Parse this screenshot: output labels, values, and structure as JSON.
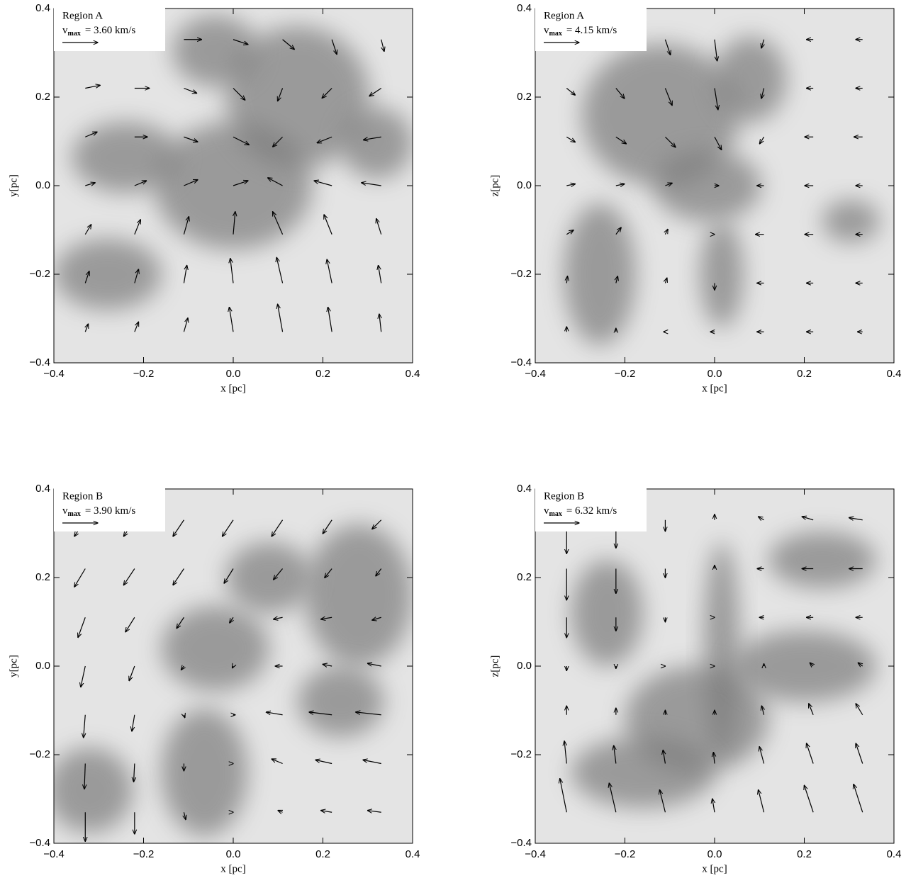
{
  "chart_data": [
    {
      "type": "quiver",
      "region_label": "Region A",
      "vmax_symbol": "v",
      "vmax_subscript": "max",
      "reference_arrow": {
        "value": 3.6,
        "label": "= 3.60 km/s"
      },
      "xlabel": "x [pc]",
      "ylabel": "y[pc]",
      "xlim": [
        -0.4,
        0.4
      ],
      "ylim": [
        -0.4,
        0.4
      ],
      "xticks": [
        {
          "value": -0.4,
          "label": "−0.4"
        },
        {
          "value": -0.2,
          "label": "−0.2"
        },
        {
          "value": 0,
          "label": "0.0"
        },
        0.2,
        0.4
      ],
      "yticks": [
        {
          "value": -0.4,
          "label": "−0.4"
        },
        {
          "value": -0.2,
          "label": "−0.2"
        },
        {
          "value": 0,
          "label": "0.0"
        },
        0.2,
        0.4
      ],
      "grid_x": [
        -0.33,
        -0.22,
        -0.11,
        0,
        0.11,
        0.22,
        0.33
      ],
      "grid_y": [
        0.33,
        0.22,
        0.11,
        0,
        -0.11,
        -0.22,
        -0.33
      ],
      "u": [
        [
          2.0,
          2.0,
          1.8,
          1.5,
          1.2,
          0.5,
          0.3
        ],
        [
          1.5,
          1.5,
          1.3,
          1.2,
          -0.5,
          -1.0,
          -1.2
        ],
        [
          1.2,
          1.3,
          1.4,
          1.6,
          -1.0,
          -1.5,
          -1.8
        ],
        [
          1.0,
          1.2,
          1.4,
          1.5,
          -1.5,
          -1.8,
          -2.0
        ],
        [
          0.6,
          0.6,
          0.5,
          0.2,
          -1.0,
          -0.8,
          -0.5
        ],
        [
          0.4,
          0.4,
          0.3,
          -0.3,
          -0.6,
          -0.5,
          -0.3
        ],
        [
          0.3,
          0.4,
          0.4,
          -0.4,
          -0.5,
          -0.4,
          -0.2
        ]
      ],
      "v": [
        [
          0,
          0,
          0,
          -0.5,
          -1.0,
          -1.5,
          -1.2
        ],
        [
          0.3,
          0,
          -0.5,
          -1.2,
          -1.3,
          -1.0,
          -0.8
        ],
        [
          0.5,
          0,
          -0.5,
          -0.8,
          -1.0,
          -0.6,
          -0.3
        ],
        [
          0.3,
          0.5,
          0.6,
          0.5,
          0.8,
          0.5,
          0.3
        ],
        [
          1.0,
          1.5,
          1.8,
          2.3,
          2.3,
          2.0,
          1.6
        ],
        [
          1.2,
          1.4,
          1.8,
          2.5,
          2.6,
          2.4,
          1.8
        ],
        [
          0.8,
          1.0,
          1.4,
          2.5,
          2.8,
          2.5,
          1.8
        ]
      ]
    },
    {
      "type": "quiver",
      "region_label": "Region A",
      "vmax_symbol": "v",
      "vmax_subscript": "max",
      "reference_arrow": {
        "value": 4.15,
        "label": "= 4.15 km/s"
      },
      "xlabel": "x [pc]",
      "ylabel": "z[pc]",
      "xlim": [
        -0.4,
        0.4
      ],
      "ylim": [
        -0.4,
        0.4
      ],
      "xticks": [
        {
          "value": -0.4,
          "label": "−0.4"
        },
        {
          "value": -0.2,
          "label": "−0.2"
        },
        {
          "value": 0,
          "label": "0.0"
        },
        0.2,
        0.4
      ],
      "yticks": [
        {
          "value": -0.4,
          "label": "−0.4"
        },
        {
          "value": -0.2,
          "label": "−0.2"
        },
        {
          "value": 0,
          "label": "0.0"
        },
        0.2,
        0.4
      ],
      "grid_x": [
        -0.33,
        -0.22,
        -0.11,
        0,
        0.11,
        0.22,
        0.33
      ],
      "grid_y": [
        0.33,
        0.22,
        0.11,
        0,
        -0.11,
        -0.22,
        -0.33
      ],
      "u": [
        [
          0.8,
          0.8,
          0.6,
          0.3,
          -0.3,
          -0.8,
          -0.8
        ],
        [
          1.0,
          1.0,
          0.8,
          0.4,
          -0.3,
          -0.8,
          -0.8
        ],
        [
          1.0,
          1.2,
          1.2,
          0.8,
          -0.5,
          -1.0,
          -1.0
        ],
        [
          1.0,
          1.0,
          0.8,
          0.5,
          -0.8,
          -1.0,
          -0.8
        ],
        [
          0.8,
          0.6,
          0.3,
          0,
          -1.0,
          -1.0,
          -0.8
        ],
        [
          0.1,
          0.2,
          0.2,
          0,
          -0.8,
          -0.8,
          -0.8
        ],
        [
          0,
          0,
          -0.2,
          -0.5,
          -0.8,
          -0.8,
          -0.6
        ]
      ],
      "v": [
        [
          -0.8,
          -1.2,
          -1.8,
          -2.5,
          -1.0,
          0,
          0
        ],
        [
          -0.8,
          -1.2,
          -2.0,
          -2.5,
          -1.2,
          0,
          0
        ],
        [
          -0.6,
          -0.8,
          -1.2,
          -1.5,
          -0.8,
          0,
          0
        ],
        [
          0.2,
          0.2,
          0.3,
          0,
          0,
          0,
          0
        ],
        [
          0.5,
          0.8,
          0.6,
          0,
          0,
          0,
          0
        ],
        [
          0.8,
          0.8,
          0.6,
          -0.8,
          0,
          0,
          0
        ],
        [
          0.6,
          0.4,
          0,
          0,
          0,
          0,
          0
        ]
      ]
    },
    {
      "type": "quiver",
      "region_label": "Region B",
      "vmax_symbol": "v",
      "vmax_subscript": "max",
      "reference_arrow": {
        "value": 3.9,
        "label": "= 3.90 km/s"
      },
      "xlabel": "x [pc]",
      "ylabel": "y[pc]",
      "xlim": [
        -0.4,
        0.4
      ],
      "ylim": [
        -0.4,
        0.4
      ],
      "xticks": [
        {
          "value": -0.4,
          "label": "−0.4"
        },
        {
          "value": -0.2,
          "label": "−0.2"
        },
        {
          "value": 0,
          "label": "0.0"
        },
        0.2,
        0.4
      ],
      "yticks": [
        {
          "value": -0.4,
          "label": "−0.4"
        },
        {
          "value": -0.2,
          "label": "−0.2"
        },
        {
          "value": 0,
          "label": "0.0"
        },
        0.2,
        0.4
      ],
      "grid_x": [
        -0.33,
        -0.22,
        -0.11,
        0,
        0.11,
        0.22,
        0.33
      ],
      "grid_y": [
        0.33,
        0.22,
        0.11,
        0,
        -0.11,
        -0.22,
        -0.33
      ],
      "u": [
        [
          -1.2,
          -1.2,
          -1.2,
          -1.2,
          -1.2,
          -1.0,
          -1.0
        ],
        [
          -1.2,
          -1.2,
          -1.2,
          -1.0,
          -1.0,
          -0.8,
          -0.6
        ],
        [
          -0.8,
          -1.0,
          -0.8,
          -0.4,
          -1.0,
          -1.2,
          -1.0
        ],
        [
          -0.5,
          -0.6,
          -0.3,
          -0.1,
          -0.8,
          -1.0,
          -1.5
        ],
        [
          -0.2,
          -0.3,
          0.1,
          0.2,
          -1.8,
          -2.5,
          -2.8
        ],
        [
          -0.1,
          -0.1,
          0,
          0,
          -1.2,
          -1.8,
          -2.0
        ],
        [
          0,
          0,
          0.2,
          0,
          -0.5,
          -1.2,
          -1.5
        ]
      ],
      "v": [
        [
          -1.8,
          -1.8,
          -1.8,
          -1.8,
          -1.8,
          -1.5,
          -1.0
        ],
        [
          -2.0,
          -1.8,
          -1.8,
          -1.6,
          -1.2,
          -1.0,
          -0.8
        ],
        [
          -2.2,
          -1.6,
          -1.2,
          -0.6,
          -0.2,
          -0.2,
          -0.3
        ],
        [
          -2.3,
          -1.6,
          -0.4,
          -0.2,
          0,
          0.2,
          0.3
        ],
        [
          -2.5,
          -1.8,
          -0.3,
          0,
          0.3,
          0.3,
          0.3
        ],
        [
          -2.8,
          -2.0,
          -0.8,
          0,
          0.5,
          0.4,
          0.4
        ],
        [
          -3.2,
          -2.4,
          -0.8,
          0,
          0.2,
          0.2,
          0.2
        ]
      ]
    },
    {
      "type": "quiver",
      "region_label": "Region B",
      "vmax_symbol": "v",
      "vmax_subscript": "max",
      "reference_arrow": {
        "value": 6.32,
        "label": "= 6.32 km/s"
      },
      "xlabel": "x [pc]",
      "ylabel": "z[pc]",
      "xlim": [
        -0.4,
        0.4
      ],
      "ylim": [
        -0.4,
        0.4
      ],
      "xticks": [
        {
          "value": -0.4,
          "label": "−0.4"
        },
        {
          "value": -0.2,
          "label": "−0.2"
        },
        {
          "value": 0,
          "label": "0.0"
        },
        0.2,
        0.4
      ],
      "yticks": [
        {
          "value": -0.4,
          "label": "−0.4"
        },
        {
          "value": -0.2,
          "label": "−0.2"
        },
        {
          "value": 0,
          "label": "0.0"
        },
        0.2,
        0.4
      ],
      "grid_x": [
        -0.33,
        -0.22,
        -0.11,
        0,
        0.11,
        0.22,
        0.33
      ],
      "grid_y": [
        0.33,
        0.22,
        0.11,
        0,
        -0.11,
        -0.22,
        -0.33
      ],
      "u": [
        [
          0,
          0,
          0,
          0,
          -1.0,
          -2.0,
          -2.4
        ],
        [
          0,
          0,
          0,
          0,
          -1.2,
          -2.0,
          -2.4
        ],
        [
          0,
          0,
          0,
          0,
          -0.8,
          -1.2,
          -1.2
        ],
        [
          0,
          0,
          0,
          0,
          0,
          -0.6,
          -0.8
        ],
        [
          0,
          0,
          0,
          0,
          -0.4,
          -0.8,
          -1.2
        ],
        [
          -0.4,
          -0.4,
          -0.4,
          -0.2,
          -0.8,
          -1.2,
          -1.2
        ],
        [
          -1.2,
          -1.2,
          -1.0,
          -0.4,
          -1.0,
          -1.6,
          -1.6
        ]
      ],
      "v": [
        [
          -6.0,
          -5.0,
          -2.0,
          1.0,
          0.6,
          0.6,
          0.4
        ],
        [
          -5.6,
          -4.4,
          -1.6,
          0.6,
          0,
          0,
          0
        ],
        [
          -3.6,
          -2.4,
          -0.8,
          0,
          0,
          0,
          0
        ],
        [
          -0.8,
          -0.4,
          0,
          0,
          0.4,
          0.6,
          0.6
        ],
        [
          1.6,
          1.2,
          0.8,
          0.8,
          1.6,
          2.0,
          2.0
        ],
        [
          4.0,
          3.2,
          2.4,
          2.0,
          3.0,
          3.6,
          3.6
        ],
        [
          6.0,
          5.2,
          4.0,
          2.4,
          4.0,
          4.8,
          5.0
        ]
      ]
    }
  ]
}
